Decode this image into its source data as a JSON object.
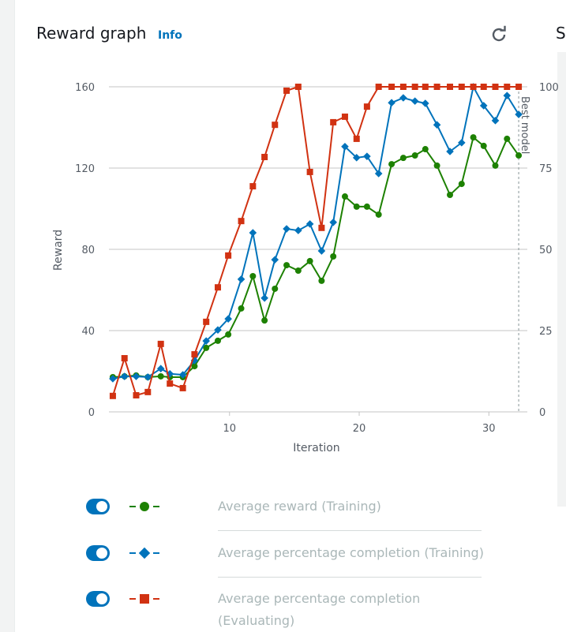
{
  "header": {
    "title": "Reward graph",
    "info": "Info",
    "cut_off_tab": "S"
  },
  "chart_data": {
    "type": "line",
    "x_label": "Iteration",
    "y_label": "Reward",
    "x": [
      1.0,
      1.9,
      2.8,
      3.7,
      4.7,
      5.4,
      6.4,
      7.3,
      8.2,
      9.1,
      9.9,
      10.9,
      11.8,
      12.7,
      13.5,
      14.4,
      15.3,
      16.2,
      17.1,
      18.0,
      18.9,
      19.8,
      20.6,
      21.5,
      22.5,
      23.4,
      24.3,
      25.1,
      26.0,
      27.0,
      27.9,
      28.8,
      29.6,
      30.5,
      31.4,
      32.3
    ],
    "xlim": [
      0.7,
      32.6
    ],
    "xticks": [
      10,
      20,
      30
    ],
    "ylim": [
      0,
      160
    ],
    "yticks": [
      0,
      40,
      80,
      120,
      160
    ],
    "y2lim": [
      0,
      100
    ],
    "y2ticks": [
      0,
      25,
      50,
      75,
      100
    ],
    "grid": true,
    "best_model": {
      "x": 32.3,
      "label": "Best model"
    },
    "series": [
      {
        "name": "Average reward (Training)",
        "color": "#1d8102",
        "marker": "circle",
        "values": [
          17.1,
          17.5,
          17.9,
          17.1,
          17.5,
          17.1,
          17.1,
          22.5,
          31.5,
          35.0,
          38.1,
          50.9,
          66.8,
          45.0,
          60.6,
          72.2,
          69.5,
          74.2,
          64.5,
          76.5,
          106.0,
          101.0,
          101.0,
          97.1,
          121.9,
          125.0,
          126.2,
          129.3,
          121.2,
          106.8,
          112.2,
          135.1,
          130.9,
          121.2,
          134.4,
          126.2
        ]
      },
      {
        "name": "Average percentage completion (Training)",
        "color": "#0073bb",
        "marker": "diamond",
        "axis": "y2",
        "values": [
          10.2,
          10.9,
          10.9,
          10.7,
          13.3,
          11.7,
          11.4,
          15.8,
          21.8,
          25.2,
          28.6,
          40.8,
          55.1,
          35.0,
          46.8,
          56.3,
          55.8,
          57.8,
          49.5,
          58.3,
          81.6,
          78.2,
          78.6,
          73.3,
          95.1,
          96.6,
          95.6,
          94.9,
          88.3,
          80.1,
          82.8,
          100,
          94.2,
          89.6,
          97.3,
          91.5
        ]
      },
      {
        "name": "Average percentage completion (Evaluating)",
        "color": "#d13212",
        "marker": "square",
        "axis": "y2",
        "values": [
          4.9,
          16.5,
          5.1,
          6.1,
          20.9,
          8.7,
          7.3,
          17.7,
          27.7,
          38.3,
          48.1,
          58.7,
          69.4,
          78.4,
          88.3,
          98.8,
          100,
          73.8,
          56.6,
          89.1,
          90.8,
          84.0,
          93.9,
          100,
          100,
          100,
          100,
          100,
          100,
          100,
          100,
          100,
          100,
          100,
          100,
          100
        ]
      }
    ]
  }
}
